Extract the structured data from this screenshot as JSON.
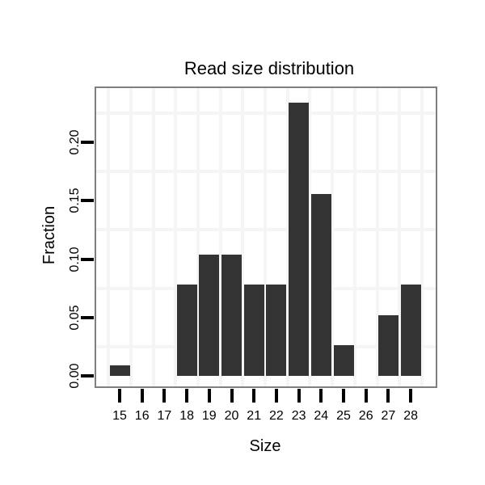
{
  "title": "Read size distribution",
  "chart_data": {
    "type": "bar",
    "title": "Read size distribution",
    "xlabel": "Size",
    "ylabel": "Fraction",
    "categories": [
      "15",
      "16",
      "17",
      "18",
      "19",
      "20",
      "21",
      "22",
      "23",
      "24",
      "25",
      "26",
      "27",
      "28"
    ],
    "values": [
      0.009,
      0,
      0,
      0.078,
      0.104,
      0.104,
      0.078,
      0.078,
      0.234,
      0.156,
      0.026,
      0,
      0.052,
      0.078
    ],
    "y_ticks": [
      0.0,
      0.05,
      0.1,
      0.15,
      0.2
    ],
    "y_tick_labels": [
      "0.00",
      "0.05",
      "0.10",
      "0.15",
      "0.20"
    ],
    "ylim": [
      -0.009,
      0.247
    ],
    "grid": "minor-gridlines-only",
    "legend": "none",
    "colors": {
      "bar_fill": "#333333",
      "panel_border": "#7f7f7f",
      "gridline_minor": "#f5f5f5",
      "axis_tick": "#000000",
      "text": "#000000",
      "background": "#ffffff"
    }
  }
}
